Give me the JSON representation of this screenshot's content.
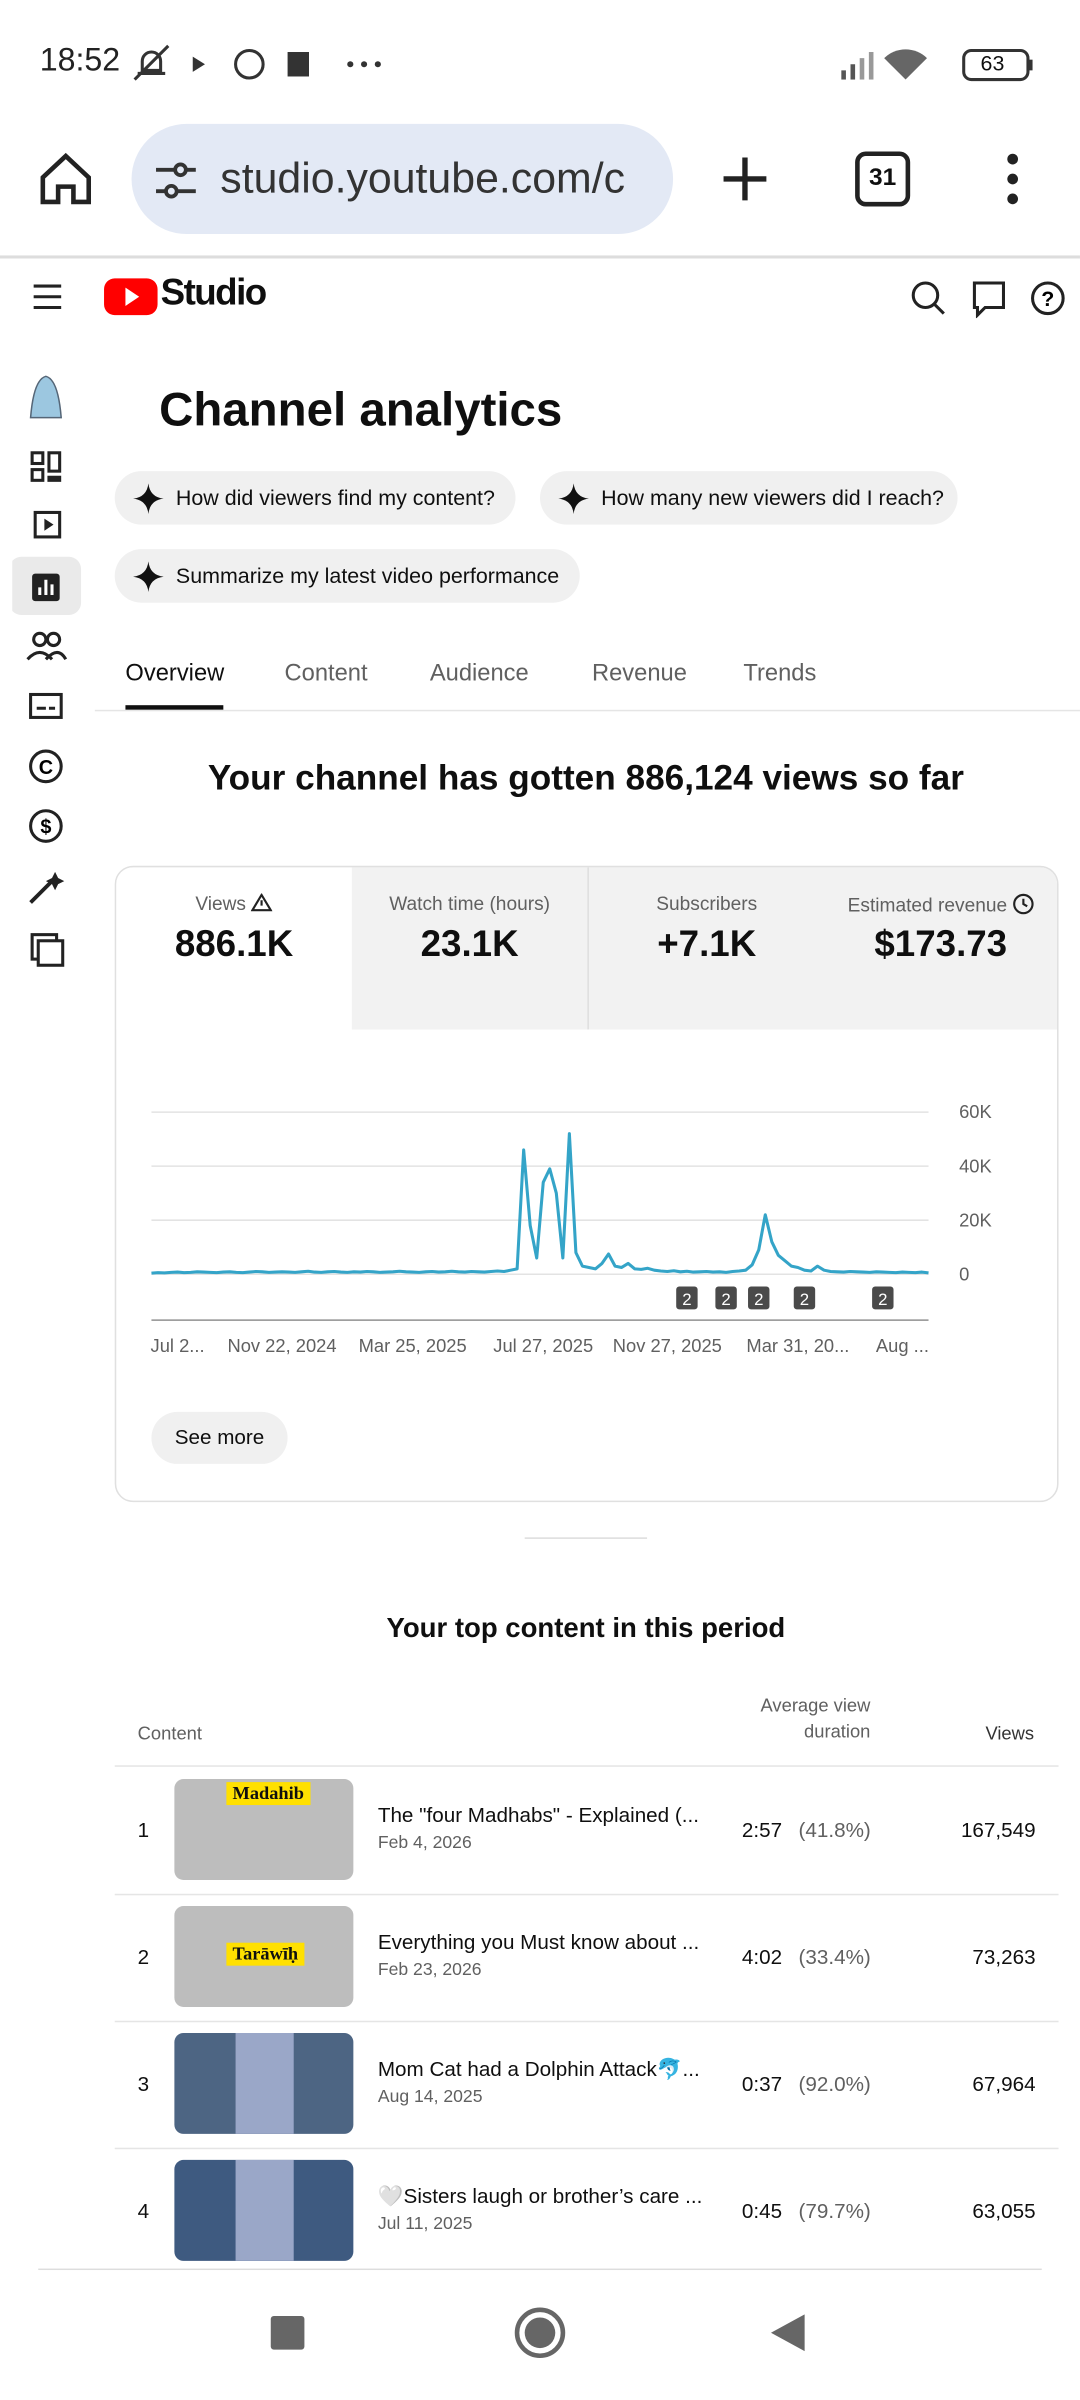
{
  "status_bar": {
    "time": "18:52",
    "battery": "63"
  },
  "browser": {
    "url": "studio.youtube.com/c",
    "tabs": "31"
  },
  "studio": {
    "brand": "Studio"
  },
  "page": {
    "title": "Channel analytics"
  },
  "prompts": [
    "How did viewers find my content?",
    "How many new viewers did I reach?",
    "Summarize my latest video performance"
  ],
  "tabs": [
    "Overview",
    "Content",
    "Audience",
    "Revenue",
    "Trends"
  ],
  "summary": "Your channel has gotten 886,124 views so far",
  "metrics": [
    {
      "label": "Views",
      "value": "886.1K"
    },
    {
      "label": "Watch time (hours)",
      "value": "23.1K"
    },
    {
      "label": "Subscribers",
      "value": "+7.1K"
    },
    {
      "label": "Estimated revenue",
      "value": "$173.73"
    }
  ],
  "chart_data": {
    "type": "line",
    "color": "#34a4c8",
    "categories": [
      null,
      null,
      null,
      null,
      "Jul 2...",
      null,
      null,
      null,
      null,
      null,
      null,
      null,
      null,
      null,
      null,
      null,
      null,
      null,
      null,
      null,
      "Nov 22, 2024",
      null,
      null,
      null,
      null,
      null,
      null,
      null,
      null,
      null,
      null,
      null,
      null,
      null,
      null,
      null,
      null,
      null,
      null,
      null,
      "Mar 25, 2025",
      null,
      null,
      null,
      null,
      null,
      null,
      null,
      null,
      null,
      null,
      null,
      null,
      null,
      null,
      null,
      null,
      null,
      null,
      null,
      "Jul 27, 2025",
      null,
      null,
      null,
      null,
      null,
      null,
      null,
      null,
      null,
      null,
      null,
      null,
      null,
      null,
      null,
      null,
      null,
      null,
      "Nov 27, 2025",
      null,
      null,
      null,
      null,
      null,
      null,
      null,
      null,
      null,
      null,
      null,
      null,
      null,
      null,
      null,
      null,
      null,
      null,
      null,
      "Mar 31, 20...",
      null,
      null,
      null,
      null,
      null,
      null,
      null,
      null,
      null,
      null,
      null,
      null,
      null,
      null,
      null,
      "Aug ...",
      null,
      null,
      null,
      null
    ],
    "values": [
      400,
      600,
      500,
      700,
      800,
      600,
      700,
      900,
      800,
      700,
      600,
      800,
      900,
      700,
      600,
      800,
      1000,
      900,
      700,
      800,
      900,
      800,
      700,
      900,
      1100,
      800,
      700,
      900,
      1000,
      800,
      700,
      900,
      800,
      1000,
      900,
      700,
      800,
      900,
      1100,
      900,
      800,
      700,
      900,
      1000,
      800,
      900,
      1100,
      900,
      800,
      1000,
      900,
      800,
      1000,
      1200,
      1000,
      1500,
      2000,
      46000,
      18000,
      6000,
      34000,
      39000,
      30000,
      6000,
      52000,
      8000,
      3000,
      2500,
      2000,
      4000,
      7500,
      3000,
      2500,
      4000,
      2000,
      1800,
      2200,
      1500,
      1200,
      1000,
      1300,
      900,
      1100,
      800,
      900,
      1000,
      800,
      900,
      700,
      1000,
      1200,
      1500,
      3500,
      9000,
      22000,
      12000,
      7000,
      5000,
      3000,
      2500,
      1500,
      1200,
      3000,
      1500,
      1000,
      900,
      800,
      1000,
      900,
      800,
      700,
      900,
      800,
      700,
      600,
      800,
      700,
      600,
      800,
      500
    ],
    "ylim": [
      0,
      60000
    ],
    "yticks": [
      0,
      {
        "value": 20000,
        "label": "20K"
      },
      {
        "value": 40000,
        "label": "40K"
      },
      {
        "value": 60000,
        "label": "60K"
      }
    ],
    "grid": true,
    "annotations": [
      {
        "index": 82,
        "text": "2"
      },
      {
        "index": 88,
        "text": "2"
      },
      {
        "index": 93,
        "text": "2"
      },
      {
        "index": 100,
        "text": "2"
      },
      {
        "index": 112,
        "text": "2"
      }
    ]
  },
  "see_more": "See more",
  "top_content": {
    "title": "Your top content in this period",
    "headers": [
      "Content",
      "Average view duration",
      "Views"
    ],
    "rows": [
      {
        "rank": "1",
        "title": "The \"four Madhabs\" - Explained (...",
        "date": "Feb 4, 2026",
        "duration": "2:57",
        "percent": "(41.8%)",
        "views": "167,549",
        "thumb_text": "Madahib"
      },
      {
        "rank": "2",
        "title": "Everything you Must know about ...",
        "date": "Feb 23, 2026",
        "duration": "4:02",
        "percent": "(33.4%)",
        "views": "73,263",
        "thumb_text": "Tarāwīḥ"
      },
      {
        "rank": "3",
        "title": "Mom Cat had a Dolphin Attack🐬...",
        "date": "Aug 14, 2025",
        "duration": "0:37",
        "percent": "(92.0%)",
        "views": "67,964"
      },
      {
        "rank": "4",
        "title": "🤍Sisters laugh or brother’s care ...",
        "date": "Jul 11, 2025",
        "duration": "0:45",
        "percent": "(79.7%)",
        "views": "63,055"
      }
    ]
  }
}
